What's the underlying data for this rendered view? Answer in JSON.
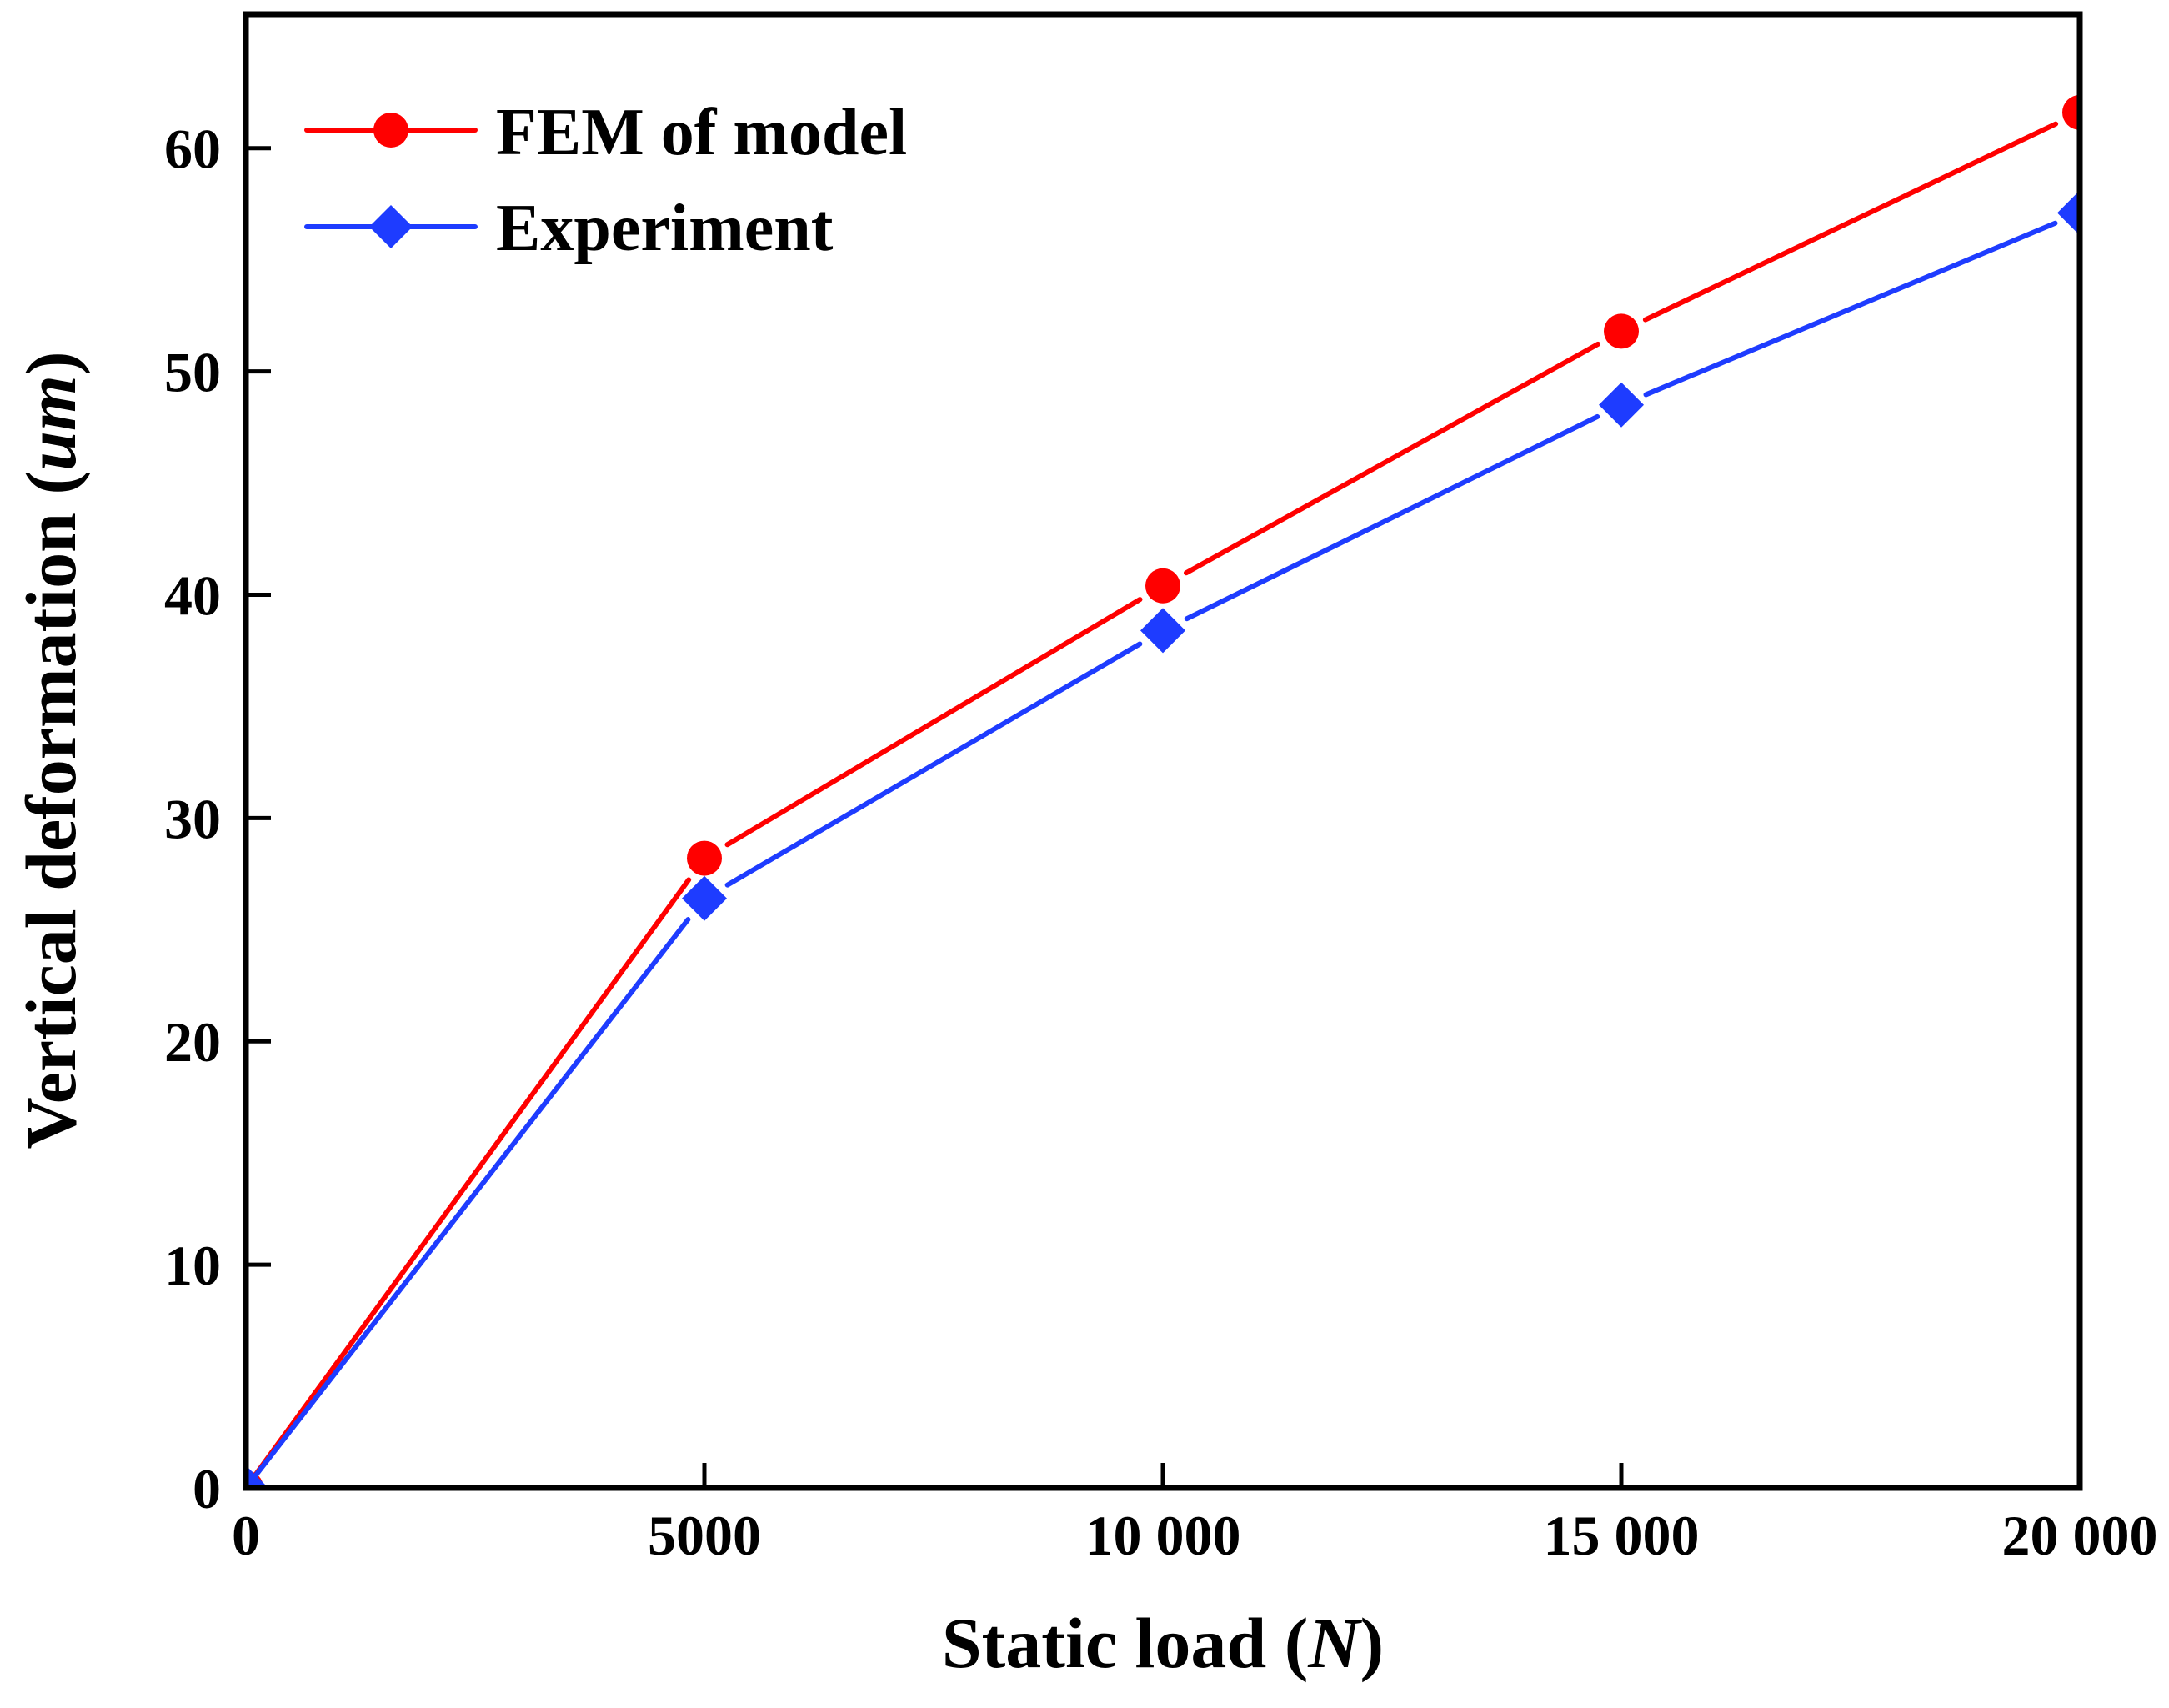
{
  "chart_data": {
    "type": "line",
    "title": "",
    "xlabel": "Static load",
    "xlabel_unit": "N",
    "ylabel": "Vertical deformation",
    "ylabel_unit": "um",
    "xlim": [
      0,
      20000
    ],
    "ylim": [
      0,
      66
    ],
    "x_ticks": [
      0,
      5000,
      10000,
      15000,
      20000
    ],
    "x_tick_labels": [
      "0",
      "5000",
      "10 000",
      "15 000",
      "20 000"
    ],
    "y_ticks": [
      0,
      10,
      20,
      30,
      40,
      50,
      60
    ],
    "y_tick_labels": [
      "0",
      "10",
      "20",
      "30",
      "40",
      "50",
      "60"
    ],
    "grid": false,
    "legend_position": "top-left",
    "x": [
      0,
      5000,
      10000,
      15000,
      20000
    ],
    "series": [
      {
        "name": "FEM of model",
        "color": "#ff0000",
        "marker": "circle",
        "values": [
          0,
          28.2,
          40.4,
          51.8,
          61.6
        ]
      },
      {
        "name": "Experiment",
        "color": "#1e3cff",
        "marker": "diamond",
        "values": [
          0,
          26.4,
          38.4,
          48.5,
          57.1
        ]
      }
    ]
  }
}
